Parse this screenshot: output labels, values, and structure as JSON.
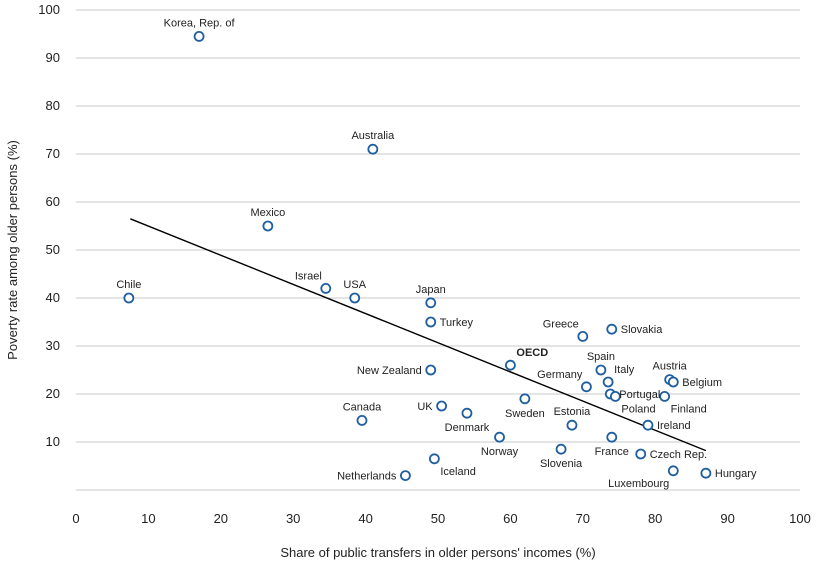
{
  "chart_data": {
    "type": "scatter",
    "title": "",
    "xlabel": "Share of public transfers in older persons' incomes (%)",
    "ylabel": "Poverty rate among older persons (%)",
    "xlim": [
      0,
      100
    ],
    "ylim": [
      0,
      100
    ],
    "x_ticks": [
      "0",
      "10",
      "20",
      "30",
      "40",
      "50",
      "60",
      "70",
      "80",
      "90",
      "100"
    ],
    "y_ticks": [
      "10",
      "20",
      "30",
      "40",
      "50",
      "60",
      "70",
      "80",
      "90",
      "100"
    ],
    "grid": "horizontal",
    "marker_color": "#1f5fa0",
    "trendline": {
      "x": [
        7.5,
        87
      ],
      "y": [
        56.5,
        8.2
      ]
    },
    "points": [
      {
        "label": "Korea, Rep. of",
        "x": 17,
        "y": 94.5,
        "pos": "above"
      },
      {
        "label": "Australia",
        "x": 41,
        "y": 71,
        "pos": "above"
      },
      {
        "label": "Mexico",
        "x": 26.5,
        "y": 55,
        "pos": "above"
      },
      {
        "label": "Chile",
        "x": 7.3,
        "y": 40,
        "pos": "above"
      },
      {
        "label": "Israel",
        "x": 34.5,
        "y": 42,
        "pos": "above-left"
      },
      {
        "label": "USA",
        "x": 38.5,
        "y": 40,
        "pos": "above"
      },
      {
        "label": "Japan",
        "x": 49,
        "y": 39,
        "pos": "above"
      },
      {
        "label": "Turkey",
        "x": 49,
        "y": 35,
        "pos": "right"
      },
      {
        "label": "Greece",
        "x": 70,
        "y": 32,
        "pos": "above-left"
      },
      {
        "label": "Slovakia",
        "x": 74,
        "y": 33.5,
        "pos": "right"
      },
      {
        "label": "New Zealand",
        "x": 49,
        "y": 25,
        "pos": "left"
      },
      {
        "label": "OECD",
        "x": 60,
        "y": 26,
        "pos": "above-right",
        "bold": true
      },
      {
        "label": "Spain",
        "x": 72.5,
        "y": 25,
        "pos": "above"
      },
      {
        "label": "Italy",
        "x": 73.5,
        "y": 22.5,
        "pos": "above-right"
      },
      {
        "label": "Austria",
        "x": 82,
        "y": 23,
        "pos": "above"
      },
      {
        "label": "Belgium",
        "x": 82.5,
        "y": 22.5,
        "pos": "right"
      },
      {
        "label": "Germany",
        "x": 70.5,
        "y": 21.5,
        "pos": "above-left"
      },
      {
        "label": "Portugal",
        "x": 73.8,
        "y": 20,
        "pos": "right"
      },
      {
        "label": "Poland",
        "x": 74.5,
        "y": 19.5,
        "pos": "below-right"
      },
      {
        "label": "Finland",
        "x": 81.3,
        "y": 19.5,
        "pos": "below-right"
      },
      {
        "label": "Sweden",
        "x": 62,
        "y": 19,
        "pos": "below"
      },
      {
        "label": "UK",
        "x": 50.5,
        "y": 17.5,
        "pos": "left"
      },
      {
        "label": "Denmark",
        "x": 54,
        "y": 16,
        "pos": "below"
      },
      {
        "label": "Canada",
        "x": 39.5,
        "y": 14.5,
        "pos": "above"
      },
      {
        "label": "Estonia",
        "x": 68.5,
        "y": 13.5,
        "pos": "above"
      },
      {
        "label": "Ireland",
        "x": 79,
        "y": 13.5,
        "pos": "right"
      },
      {
        "label": "Norway",
        "x": 58.5,
        "y": 11,
        "pos": "below"
      },
      {
        "label": "France",
        "x": 74,
        "y": 11,
        "pos": "below"
      },
      {
        "label": "Slovenia",
        "x": 67,
        "y": 8.5,
        "pos": "below"
      },
      {
        "label": "Czech Rep.",
        "x": 78,
        "y": 7.5,
        "pos": "right"
      },
      {
        "label": "Iceland",
        "x": 49.5,
        "y": 6.5,
        "pos": "below-right"
      },
      {
        "label": "Luxembourg",
        "x": 82.5,
        "y": 4,
        "pos": "below-left"
      },
      {
        "label": "Hungary",
        "x": 87,
        "y": 3.5,
        "pos": "right"
      },
      {
        "label": "Netherlands",
        "x": 45.5,
        "y": 3,
        "pos": "left"
      }
    ]
  }
}
